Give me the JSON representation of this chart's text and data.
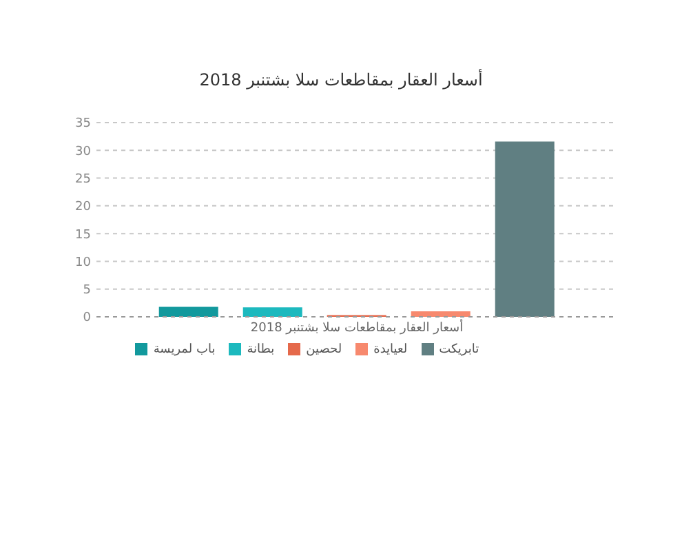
{
  "chart_data": {
    "type": "bar",
    "title": "أسعار العقار بمقاطعات سلا بشتنبر 2018",
    "categories": [
      "أسعار العقار بمقاطعات سلا بشتنبر 2018"
    ],
    "series": [
      {
        "name": "باب لمريسة",
        "color": "#12999d",
        "values": [
          1.8
        ]
      },
      {
        "name": "بطانة",
        "color": "#1cb9be",
        "values": [
          1.7
        ]
      },
      {
        "name": "لحصين",
        "color": "#e5694b",
        "values": [
          0.3
        ]
      },
      {
        "name": "لعيايدة",
        "color": "#f7896e",
        "values": [
          1.0
        ]
      },
      {
        "name": "تابريكت",
        "color": "#607f82",
        "values": [
          31.6
        ]
      }
    ],
    "ylim": [
      0,
      35
    ],
    "yticks": [
      0,
      5,
      10,
      15,
      20,
      25,
      30,
      35
    ],
    "grid": "y",
    "legend": "bottom"
  }
}
